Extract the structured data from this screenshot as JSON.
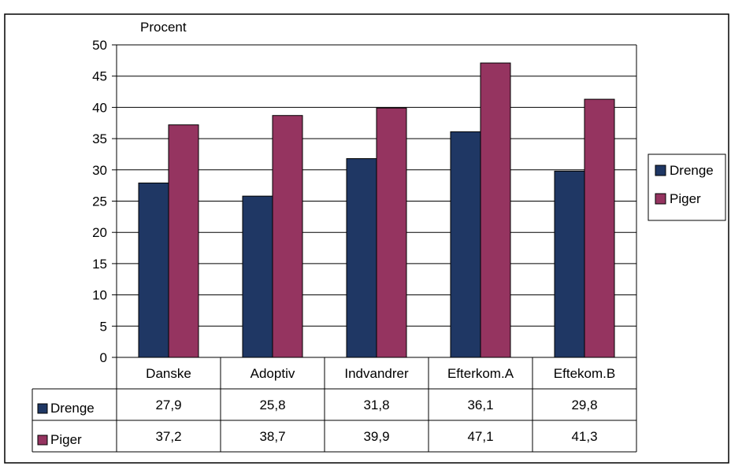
{
  "caption_fragment": "",
  "chart_data": {
    "type": "bar",
    "unit_label": "Procent",
    "ylim": [
      0,
      50
    ],
    "yticks": [
      0,
      5,
      10,
      15,
      20,
      25,
      30,
      35,
      40,
      45,
      50
    ],
    "grid": true,
    "categories": [
      "Danske",
      "Adoptiv",
      "Indvandrer",
      "Efterkom.A",
      "Eftekom.B"
    ],
    "series": [
      {
        "name": "Drenge",
        "values": [
          27.9,
          25.8,
          31.8,
          36.1,
          29.8
        ],
        "labels": [
          "27,9",
          "25,8",
          "31,8",
          "36,1",
          "29,8"
        ],
        "color": "#1f3764"
      },
      {
        "name": "Piger",
        "values": [
          37.2,
          38.7,
          39.9,
          47.1,
          41.3
        ],
        "labels": [
          "37,2",
          "38,7",
          "39,9",
          "47,1",
          "41,3"
        ],
        "color": "#953460"
      }
    ],
    "legend_position": "right",
    "data_table": true
  }
}
